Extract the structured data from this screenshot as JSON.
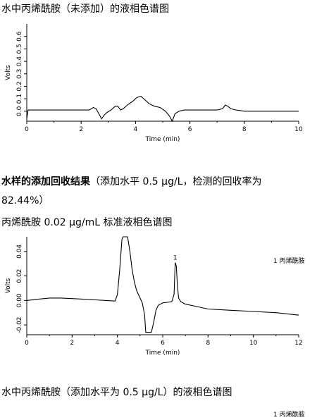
{
  "captions": {
    "c1": "水中丙烯酰胺（未添加）的液相色谱图",
    "c2_bold": "水样的添加回收结果",
    "c2_rest": "（添加水平  0.5 μg/L，检测的回收率为",
    "c2_line2": "82.44%）",
    "c3": "丙烯酰胺 0.02 μg/mL 标准液相色谱图",
    "c4": "水中丙烯酰胺（添加水平为 0.5 μg/L）的液相色谱图"
  },
  "chart_data": [
    {
      "type": "line",
      "xlabel": "Time (min)",
      "ylabel": "Volts",
      "xlim": [
        0,
        10
      ],
      "ylim": [
        -0.08,
        0.7
      ],
      "xticks": [
        "0",
        "2",
        "4",
        "6",
        "8",
        "10"
      ],
      "yticks": [
        "0.0",
        "0.1",
        "0.2",
        "0.3",
        "0.4",
        "0.5",
        "0.6"
      ],
      "series": [
        {
          "x": [
            0,
            0.05,
            0.1,
            1.0,
            2.0,
            2.3,
            2.45,
            2.55,
            2.65,
            2.75,
            2.85,
            2.95,
            3.1,
            3.25,
            3.35,
            3.45,
            3.55,
            3.7,
            3.9,
            4.05,
            4.2,
            4.35,
            4.5,
            4.7,
            4.9,
            5.1,
            5.25,
            5.35,
            5.45,
            5.6,
            5.8,
            6.0,
            6.5,
            7.0,
            7.2,
            7.3,
            7.4,
            7.5,
            7.7,
            8.0,
            9.0,
            10.0
          ],
          "y": [
            -0.06,
            0.01,
            0.01,
            0.01,
            0.01,
            0.01,
            0.03,
            0.02,
            -0.02,
            -0.06,
            -0.03,
            -0.01,
            0.01,
            0.04,
            0.04,
            0.01,
            0.02,
            0.05,
            0.08,
            0.11,
            0.12,
            0.09,
            0.06,
            0.04,
            0.03,
            0.0,
            -0.04,
            -0.08,
            -0.02,
            0.0,
            0.01,
            0.01,
            0.01,
            0.01,
            0.02,
            0.05,
            0.04,
            0.02,
            0.01,
            0.0,
            0.0,
            0.0
          ]
        }
      ]
    },
    {
      "type": "line",
      "xlabel": "Time (min)",
      "ylabel": "Volts",
      "xlim": [
        0,
        12
      ],
      "ylim": [
        -0.028,
        0.052
      ],
      "xticks": [
        "0",
        "2",
        "4",
        "6",
        "8",
        "10",
        "12"
      ],
      "yticks": [
        "-0.02",
        "0.00",
        "0.02",
        "0.04"
      ],
      "legend": "1  丙烯酰胺",
      "annotations": [
        {
          "text": "1",
          "x": 6.55,
          "y": 0.031
        }
      ],
      "series": [
        {
          "x": [
            0,
            0.5,
            1.0,
            1.5,
            2.0,
            2.5,
            3.0,
            3.5,
            3.9,
            4.0,
            4.1,
            4.2,
            4.25,
            4.3,
            4.45,
            4.55,
            4.65,
            4.75,
            4.85,
            4.95,
            5.05,
            5.1,
            5.2,
            5.25,
            5.35,
            5.45,
            5.5,
            5.6,
            5.7,
            5.8,
            6.0,
            6.2,
            6.4,
            6.5,
            6.55,
            6.6,
            6.65,
            6.7,
            6.8,
            7.0,
            7.5,
            8.0,
            9.0,
            10.0,
            11.0,
            12.0
          ],
          "y": [
            0.0,
            0.001,
            0.002,
            0.002,
            0.0015,
            0.001,
            0.0005,
            0.0,
            -0.0005,
            0.005,
            0.025,
            0.05,
            0.052,
            0.052,
            0.052,
            0.04,
            0.025,
            0.015,
            0.008,
            0.004,
            0.0,
            -0.002,
            -0.012,
            -0.026,
            -0.026,
            -0.026,
            -0.026,
            -0.018,
            -0.008,
            -0.004,
            -0.002,
            -0.0015,
            -0.001,
            0.005,
            0.031,
            0.028,
            0.012,
            0.002,
            -0.001,
            -0.003,
            -0.005,
            -0.007,
            -0.008,
            -0.009,
            -0.01,
            -0.012
          ]
        }
      ]
    }
  ],
  "legend_bottom": "1  丙烯酰胺"
}
